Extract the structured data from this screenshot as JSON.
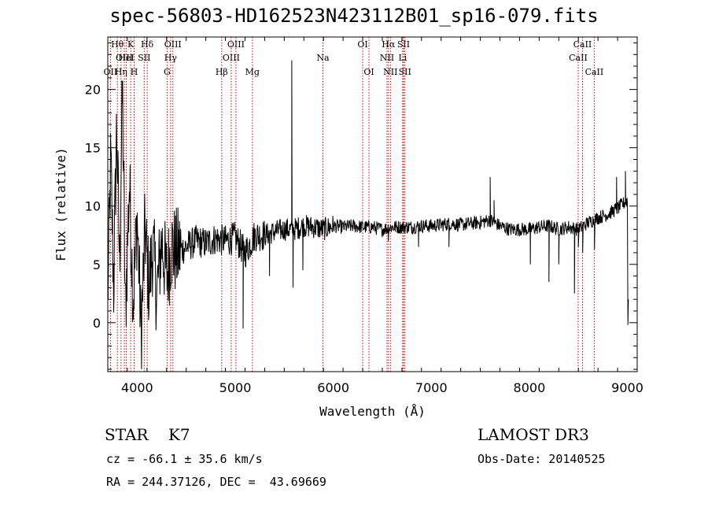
{
  "chart_data": {
    "type": "line",
    "title": "spec-56803-HD162523N423112B01_sp16-079.fits",
    "xlabel": "Wavelength (Å)",
    "ylabel": "Flux (relative)",
    "xlim": [
      3700,
      9100
    ],
    "ylim": [
      -4.2,
      24.5
    ],
    "x_ticks": [
      4000,
      5000,
      6000,
      7000,
      8000,
      9000
    ],
    "x_tick_labels": [
      "4000",
      "5000",
      "6000",
      "7000",
      "8000",
      "9000"
    ],
    "y_ticks": [
      0,
      5,
      10,
      15,
      20
    ],
    "y_tick_labels": [
      "0",
      "5",
      "10",
      "15",
      "20"
    ],
    "series": [
      {
        "name": "flux",
        "anchors": [
          [
            3700,
            2.0
          ],
          [
            3730,
            14.0
          ],
          [
            3760,
            3.0
          ],
          [
            3790,
            17.0
          ],
          [
            3820,
            5.0
          ],
          [
            3850,
            20.0
          ],
          [
            3880,
            0.5
          ],
          [
            3920,
            12.0
          ],
          [
            3960,
            2.0
          ],
          [
            4000,
            9.0
          ],
          [
            4040,
            -1.0
          ],
          [
            4080,
            8.0
          ],
          [
            4120,
            3.0
          ],
          [
            4160,
            6.5
          ],
          [
            4200,
            2.5
          ],
          [
            4250,
            7.0
          ],
          [
            4300,
            4.0
          ],
          [
            4350,
            6.5
          ],
          [
            4400,
            6.0
          ],
          [
            4500,
            6.5
          ],
          [
            4600,
            7.0
          ],
          [
            4700,
            6.8
          ],
          [
            4800,
            7.2
          ],
          [
            4900,
            7.0
          ],
          [
            5000,
            7.3
          ],
          [
            5100,
            6.0
          ],
          [
            5200,
            7.5
          ],
          [
            5300,
            7.5
          ],
          [
            5400,
            7.8
          ],
          [
            5500,
            8.0
          ],
          [
            5600,
            8.0
          ],
          [
            5700,
            8.3
          ],
          [
            5800,
            8.2
          ],
          [
            5900,
            8.0
          ],
          [
            6000,
            8.3
          ],
          [
            6100,
            8.2
          ],
          [
            6200,
            8.3
          ],
          [
            6300,
            8.2
          ],
          [
            6400,
            8.2
          ],
          [
            6500,
            8.0
          ],
          [
            6600,
            8.2
          ],
          [
            6700,
            8.2
          ],
          [
            6800,
            8.2
          ],
          [
            6900,
            8.3
          ],
          [
            7000,
            8.3
          ],
          [
            7100,
            8.4
          ],
          [
            7200,
            8.5
          ],
          [
            7300,
            8.4
          ],
          [
            7400,
            8.5
          ],
          [
            7500,
            8.6
          ],
          [
            7600,
            8.8
          ],
          [
            7700,
            8.3
          ],
          [
            7800,
            8.0
          ],
          [
            7900,
            8.0
          ],
          [
            8000,
            8.0
          ],
          [
            8100,
            8.2
          ],
          [
            8200,
            8.3
          ],
          [
            8300,
            8.0
          ],
          [
            8400,
            8.2
          ],
          [
            8500,
            8.0
          ],
          [
            8600,
            8.6
          ],
          [
            8700,
            9.0
          ],
          [
            8800,
            9.3
          ],
          [
            8900,
            9.8
          ],
          [
            9000,
            10.5
          ]
        ],
        "noise_regions": [
          [
            3700,
            4450,
            4.0
          ],
          [
            4450,
            5300,
            1.4
          ],
          [
            5300,
            6000,
            1.0
          ],
          [
            6000,
            9000,
            0.6
          ]
        ],
        "features": [
          [
            5577,
            22.5
          ],
          [
            5590,
            3.0
          ],
          [
            5080,
            -0.5
          ],
          [
            5350,
            4.0
          ],
          [
            5690,
            4.5
          ],
          [
            6870,
            6.5
          ],
          [
            7600,
            12.5
          ],
          [
            7640,
            10.5
          ],
          [
            7180,
            6.5
          ],
          [
            8200,
            3.5
          ],
          [
            8300,
            5.0
          ],
          [
            8460,
            2.5
          ],
          [
            8980,
            13.0
          ],
          [
            8890,
            12.5
          ],
          [
            8500,
            6.5
          ],
          [
            8544,
            6.0
          ],
          [
            8664,
            6.3
          ],
          [
            9005,
            -0.2
          ],
          [
            9010,
            2.0
          ],
          [
            8010,
            5.0
          ],
          [
            6562,
            7.0
          ]
        ]
      }
    ],
    "spectral_lines": [
      {
        "label": "OII",
        "wavelength": 3727,
        "row": 2
      },
      {
        "label": "Hθ",
        "wavelength": 3798,
        "row": 0
      },
      {
        "label": "Hη",
        "wavelength": 3835,
        "row": 2
      },
      {
        "label": "OIII",
        "wavelength": 3869,
        "row": 1
      },
      {
        "label": "HeI",
        "wavelength": 3889,
        "row": 1
      },
      {
        "label": "K",
        "wavelength": 3934,
        "row": 0
      },
      {
        "label": "H",
        "wavelength": 3969,
        "row": 2
      },
      {
        "label": "SII",
        "wavelength": 4072,
        "row": 1
      },
      {
        "label": "Hδ",
        "wavelength": 4102,
        "row": 0
      },
      {
        "label": "G",
        "wavelength": 4305,
        "row": 2
      },
      {
        "label": "Hγ",
        "wavelength": 4341,
        "row": 1
      },
      {
        "label": "OIII",
        "wavelength": 4364,
        "row": 0
      },
      {
        "label": "Hβ",
        "wavelength": 4862,
        "row": 2
      },
      {
        "label": "OIII",
        "wavelength": 4959,
        "row": 1
      },
      {
        "label": "OIII",
        "wavelength": 5007,
        "row": 0
      },
      {
        "label": "Mg",
        "wavelength": 5175,
        "row": 2
      },
      {
        "label": "Na",
        "wavelength": 5894,
        "row": 1
      },
      {
        "label": "OI",
        "wavelength": 6300,
        "row": 0
      },
      {
        "label": "OI",
        "wavelength": 6364,
        "row": 2
      },
      {
        "label": "NII",
        "wavelength": 6548,
        "row": 1
      },
      {
        "label": "Hα",
        "wavelength": 6563,
        "row": 0
      },
      {
        "label": "NII",
        "wavelength": 6583,
        "row": 2
      },
      {
        "label": "SII",
        "wavelength": 6717,
        "row": 0
      },
      {
        "label": "Li",
        "wavelength": 6708,
        "row": 1
      },
      {
        "label": "SII",
        "wavelength": 6731,
        "row": 2
      },
      {
        "label": "CaII",
        "wavelength": 8498,
        "row": 1
      },
      {
        "label": "CaII",
        "wavelength": 8542,
        "row": 0
      },
      {
        "label": "CaII",
        "wavelength": 8662,
        "row": 2
      }
    ]
  },
  "footer": {
    "object_class": "STAR    K7",
    "survey": "LAMOST DR3",
    "redshift": "cz = -66.1 ± 35.6 km/s",
    "obs_date": "Obs-Date: 20140525",
    "coords": "RA = 244.37126, DEC =  43.69669"
  },
  "colors": {
    "axis": "#000000",
    "spectrum": "#000000",
    "line_marker": "#cc0000"
  }
}
